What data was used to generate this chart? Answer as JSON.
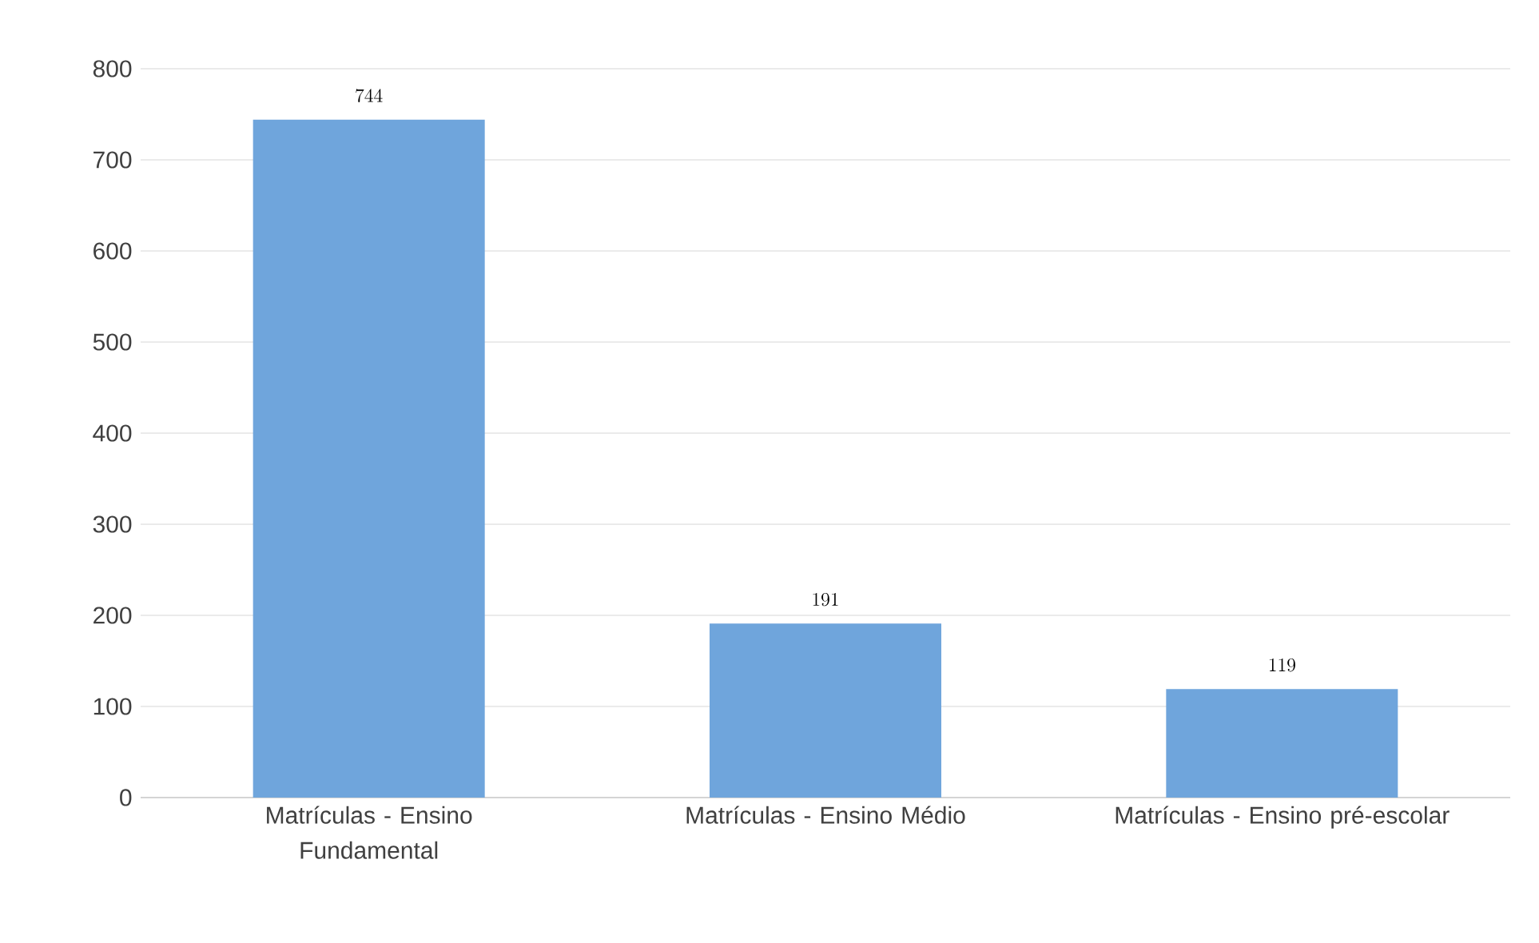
{
  "chart_data": {
    "type": "bar",
    "categories": [
      "Matrículas - Ensino Fundamental",
      "Matrículas - Ensino Médio",
      "Matrículas - Ensino pré-escolar"
    ],
    "values": [
      744,
      191,
      119
    ],
    "color": "#6fa5dc",
    "ylim": [
      0,
      800
    ],
    "yticks": [
      0,
      100,
      200,
      300,
      400,
      500,
      600,
      700,
      800
    ],
    "grid": "y",
    "data_labels": true
  }
}
